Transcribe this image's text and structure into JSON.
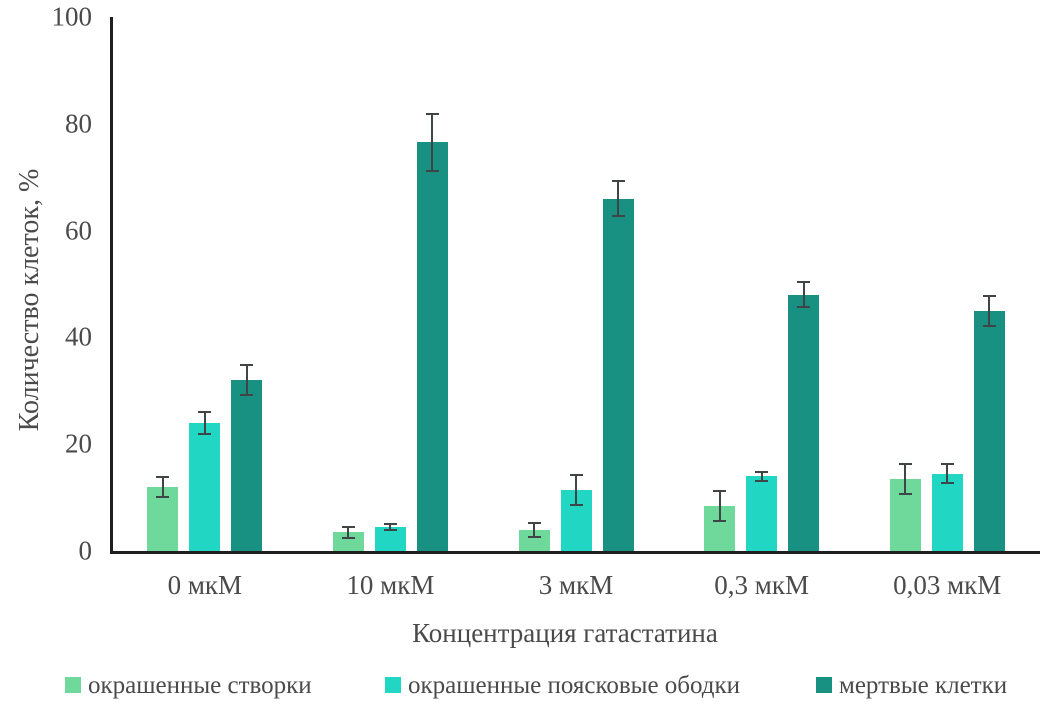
{
  "page": {
    "background": "#ffffff",
    "text_color": "#4a4a4a",
    "axis_color": "#1f1f1f",
    "error_bar_color": "#3f4447"
  },
  "chart_data": {
    "type": "bar",
    "title": "",
    "ylabel": "Количество клеток, %",
    "xlabel": "Концентрация гатастатина",
    "ylim": [
      0,
      100
    ],
    "yticks": [
      0,
      20,
      40,
      60,
      80,
      100
    ],
    "grid": false,
    "legend_position": "bottom",
    "error_bars": true,
    "categories": [
      "0 мкМ",
      "10 мкМ",
      "3 мкМ",
      "0,3  мкМ",
      "0,03  мкМ"
    ],
    "series": [
      {
        "name": "окрашенные створки",
        "color": "#6FD89B",
        "values": [
          12,
          3.5,
          4,
          8.5,
          13.5
        ],
        "errors": [
          2,
          1.2,
          1.5,
          3,
          3
        ]
      },
      {
        "name": "окрашенные поясковые ободки",
        "color": "#21D6C3",
        "values": [
          24,
          4.5,
          11.5,
          14,
          14.5
        ],
        "errors": [
          2.2,
          0.7,
          3,
          1,
          2
        ]
      },
      {
        "name": "мертвые клетки",
        "color": "#189182",
        "values": [
          32,
          76.5,
          66,
          48,
          45
        ],
        "errors": [
          3,
          5.5,
          3.5,
          2.5,
          3
        ]
      }
    ],
    "legend_x_positions": [
      65,
      385,
      816
    ]
  }
}
